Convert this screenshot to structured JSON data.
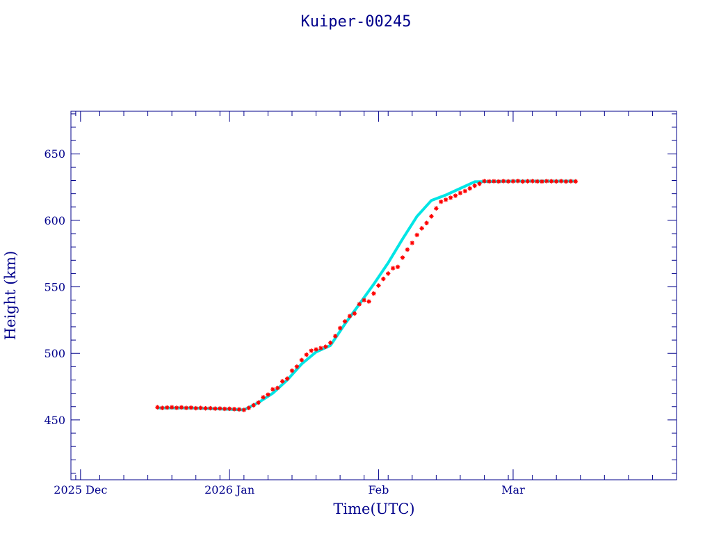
{
  "colors": {
    "axis": "#00008b",
    "points": "#ff0000",
    "fit": "#00e5e5",
    "background": "#ffffff"
  },
  "chart_data": {
    "type": "scatter",
    "title": "Kuiper-00245",
    "xlabel": "Time(UTC)",
    "ylabel": "Height (km)",
    "x_axis_type": "date",
    "xlim": [
      "2025-11-29",
      "2026-04-04"
    ],
    "ylim": [
      405,
      682
    ],
    "grid": false,
    "x_ticks": [
      {
        "date": "2025-12-01",
        "label": "2025 Dec"
      },
      {
        "date": "2026-01-01",
        "label": "2026 Jan"
      },
      {
        "date": "2026-02-01",
        "label": "Feb"
      },
      {
        "date": "2026-03-01",
        "label": "Mar"
      }
    ],
    "y_ticks": [
      450,
      500,
      550,
      600,
      650
    ],
    "series": [
      {
        "role": "fit",
        "marker": "line",
        "points": [
          [
            "2025-12-17",
            459
          ],
          [
            "2025-12-24",
            459
          ],
          [
            "2026-01-01",
            458
          ],
          [
            "2026-01-04",
            457.5
          ],
          [
            "2026-01-07",
            463
          ],
          [
            "2026-01-10",
            470
          ],
          [
            "2026-01-13",
            480
          ],
          [
            "2026-01-16",
            492
          ],
          [
            "2026-01-19",
            501
          ],
          [
            "2026-01-22",
            506
          ],
          [
            "2026-01-25",
            522
          ],
          [
            "2026-01-28",
            537
          ],
          [
            "2026-01-31",
            552
          ],
          [
            "2026-02-03",
            568
          ],
          [
            "2026-02-06",
            586
          ],
          [
            "2026-02-09",
            603
          ],
          [
            "2026-02-12",
            615
          ],
          [
            "2026-02-15",
            619
          ],
          [
            "2026-02-18",
            624
          ],
          [
            "2026-02-21",
            629
          ],
          [
            "2026-03-01",
            629.5
          ],
          [
            "2026-03-14",
            629.5
          ]
        ]
      },
      {
        "role": "observed",
        "marker": "star",
        "points": [
          [
            "2025-12-17",
            459.5
          ],
          [
            "2025-12-18",
            459
          ],
          [
            "2025-12-19",
            459.3
          ],
          [
            "2025-12-20",
            459.5
          ],
          [
            "2025-12-21",
            459.1
          ],
          [
            "2025-12-22",
            459.4
          ],
          [
            "2025-12-23",
            459
          ],
          [
            "2025-12-24",
            459.2
          ],
          [
            "2025-12-25",
            458.8
          ],
          [
            "2025-12-26",
            459
          ],
          [
            "2025-12-27",
            458.7
          ],
          [
            "2025-12-28",
            458.8
          ],
          [
            "2025-12-29",
            458.5
          ],
          [
            "2025-12-30",
            458.6
          ],
          [
            "2025-12-31",
            458.3
          ],
          [
            "2026-01-01",
            458.4
          ],
          [
            "2026-01-02",
            458.1
          ],
          [
            "2026-01-03",
            457.9
          ],
          [
            "2026-01-04",
            457.5
          ],
          [
            "2026-01-05",
            459
          ],
          [
            "2026-01-06",
            461
          ],
          [
            "2026-01-07",
            463
          ],
          [
            "2026-01-08",
            467
          ],
          [
            "2026-01-09",
            469
          ],
          [
            "2026-01-10",
            473
          ],
          [
            "2026-01-11",
            474
          ],
          [
            "2026-01-12",
            479
          ],
          [
            "2026-01-13",
            481
          ],
          [
            "2026-01-14",
            487
          ],
          [
            "2026-01-15",
            490
          ],
          [
            "2026-01-16",
            495
          ],
          [
            "2026-01-17",
            499
          ],
          [
            "2026-01-18",
            502
          ],
          [
            "2026-01-19",
            503
          ],
          [
            "2026-01-20",
            504
          ],
          [
            "2026-01-21",
            505
          ],
          [
            "2026-01-22",
            508
          ],
          [
            "2026-01-23",
            513
          ],
          [
            "2026-01-24",
            519
          ],
          [
            "2026-01-25",
            524
          ],
          [
            "2026-01-26",
            528
          ],
          [
            "2026-01-27",
            530
          ],
          [
            "2026-01-28",
            537
          ],
          [
            "2026-01-29",
            540
          ],
          [
            "2026-01-30",
            539
          ],
          [
            "2026-01-31",
            545
          ],
          [
            "2026-02-01",
            551
          ],
          [
            "2026-02-02",
            556
          ],
          [
            "2026-02-03",
            560
          ],
          [
            "2026-02-04",
            564
          ],
          [
            "2026-02-05",
            565
          ],
          [
            "2026-02-06",
            572
          ],
          [
            "2026-02-07",
            578
          ],
          [
            "2026-02-08",
            583
          ],
          [
            "2026-02-09",
            589
          ],
          [
            "2026-02-10",
            594
          ],
          [
            "2026-02-11",
            598
          ],
          [
            "2026-02-12",
            603
          ],
          [
            "2026-02-13",
            609
          ],
          [
            "2026-02-14",
            614
          ],
          [
            "2026-02-15",
            615.5
          ],
          [
            "2026-02-16",
            617
          ],
          [
            "2026-02-17",
            618.5
          ],
          [
            "2026-02-18",
            620.5
          ],
          [
            "2026-02-19",
            622
          ],
          [
            "2026-02-20",
            624
          ],
          [
            "2026-02-21",
            626
          ],
          [
            "2026-02-22",
            627.5
          ],
          [
            "2026-02-23",
            629.5
          ],
          [
            "2026-02-24",
            629.3
          ],
          [
            "2026-02-25",
            629.4
          ],
          [
            "2026-02-26",
            629.2
          ],
          [
            "2026-02-27",
            629.5
          ],
          [
            "2026-02-28",
            629.3
          ],
          [
            "2026-03-01",
            629.4
          ],
          [
            "2026-03-02",
            629.6
          ],
          [
            "2026-03-03",
            629.2
          ],
          [
            "2026-03-04",
            629.4
          ],
          [
            "2026-03-05",
            629.5
          ],
          [
            "2026-03-06",
            629.3
          ],
          [
            "2026-03-07",
            629.2
          ],
          [
            "2026-03-08",
            629.5
          ],
          [
            "2026-03-09",
            629.4
          ],
          [
            "2026-03-10",
            629.3
          ],
          [
            "2026-03-11",
            629.5
          ],
          [
            "2026-03-12",
            629.2
          ],
          [
            "2026-03-13",
            629.4
          ],
          [
            "2026-03-14",
            629.3
          ]
        ]
      }
    ]
  }
}
